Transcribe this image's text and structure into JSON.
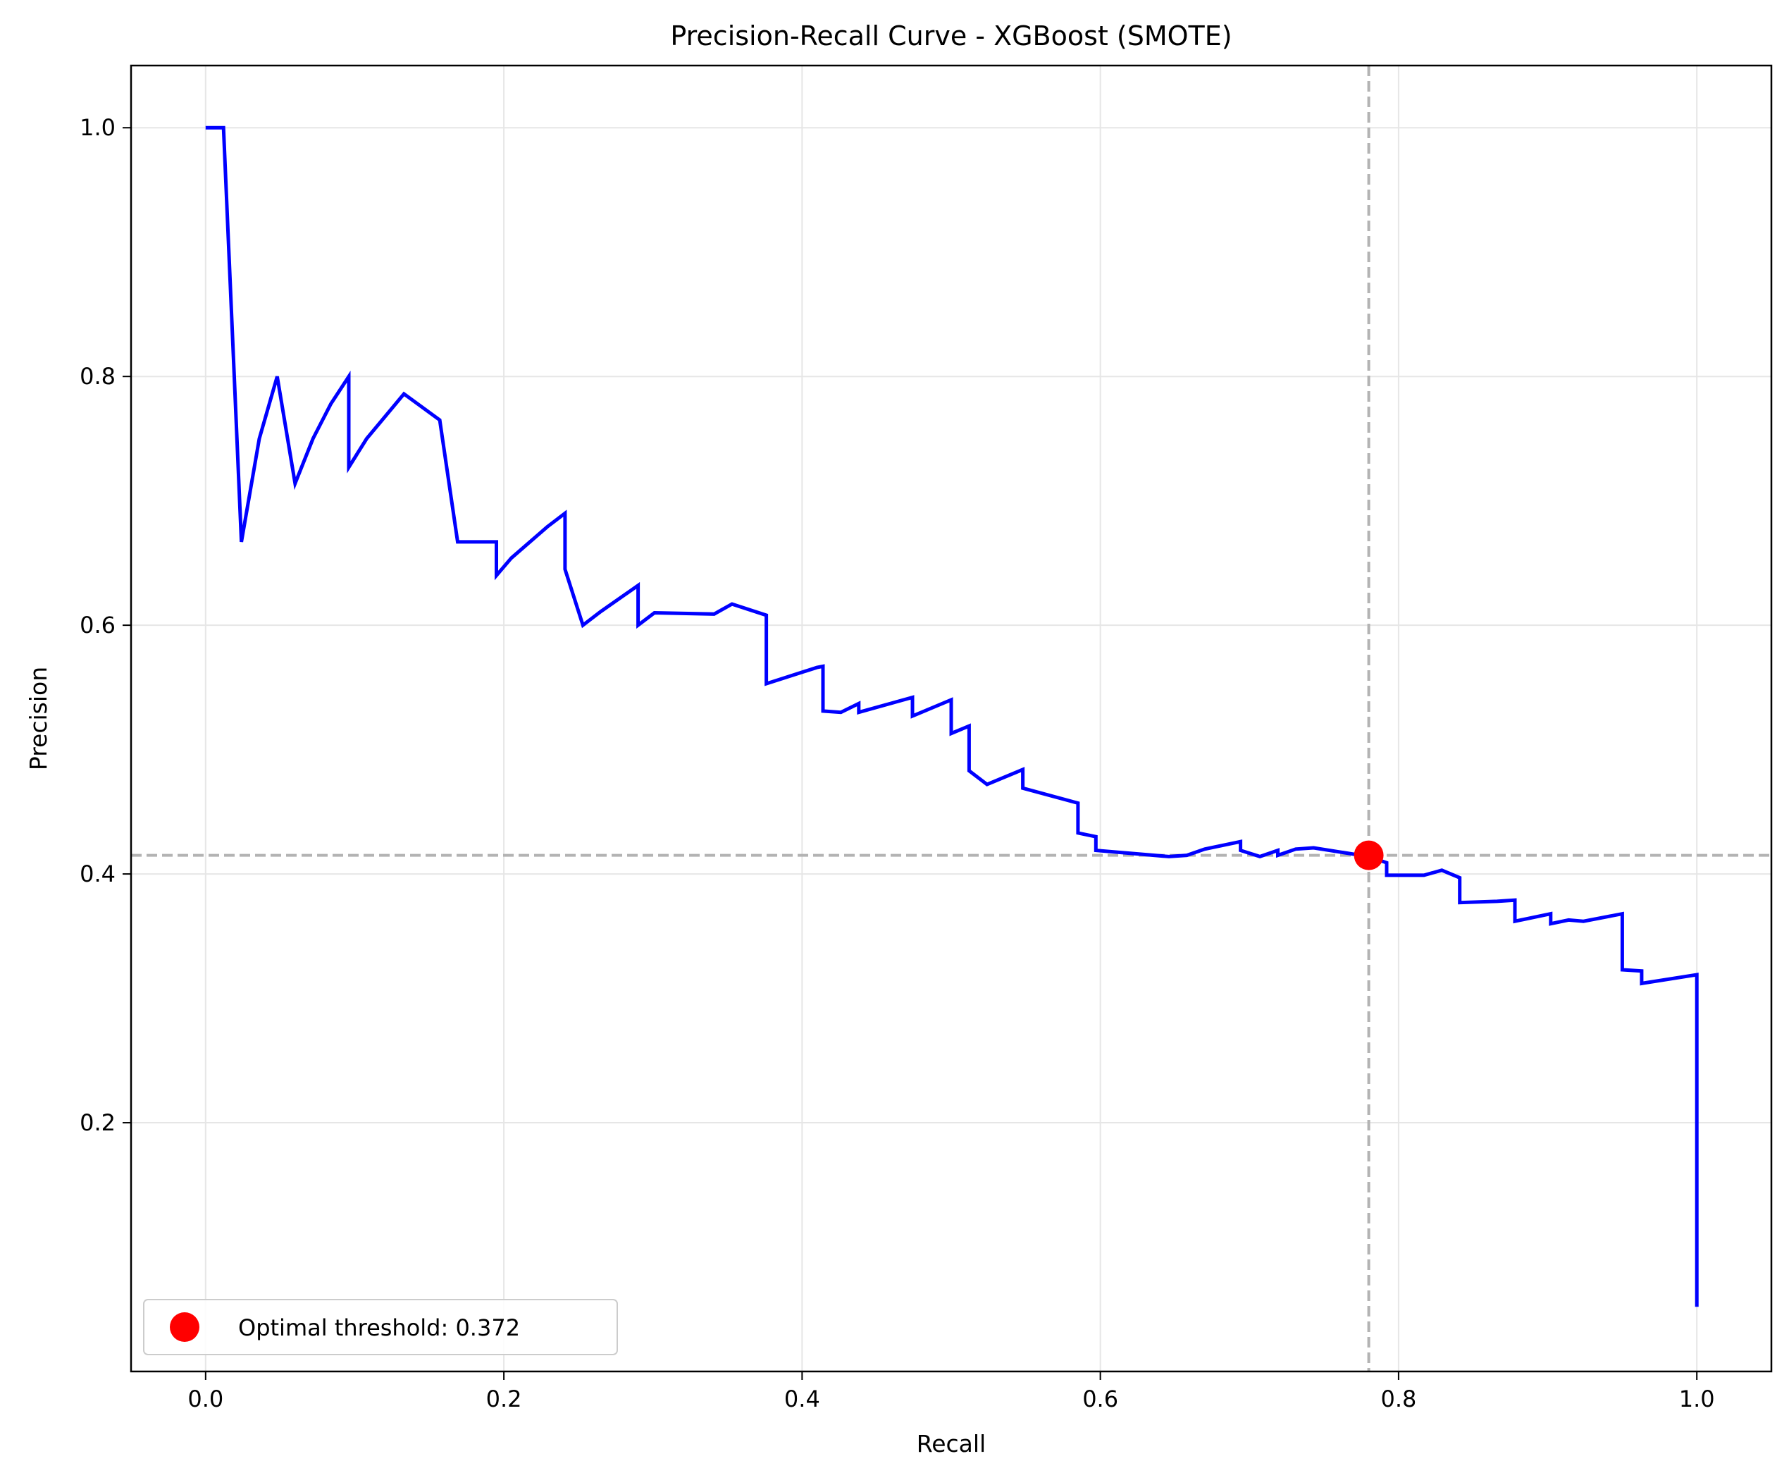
{
  "chart_data": {
    "type": "line",
    "title": "Precision-Recall Curve - XGBoost (SMOTE)",
    "xlabel": "Recall",
    "ylabel": "Precision",
    "xlim": [
      -0.05,
      1.05
    ],
    "ylim": [
      0.0,
      1.05
    ],
    "xticks": [
      0.0,
      0.2,
      0.4,
      0.6,
      0.8,
      1.0
    ],
    "xtick_labels": [
      "0.0",
      "0.2",
      "0.4",
      "0.6",
      "0.8",
      "1.0"
    ],
    "yticks": [
      0.2,
      0.4,
      0.6,
      0.8,
      1.0
    ],
    "ytick_labels": [
      "0.2",
      "0.4",
      "0.6",
      "0.8",
      "1.0"
    ],
    "grid": true,
    "legend_position": "lower-left",
    "series": [
      {
        "color": "#0000ff",
        "x": [
          0.0,
          0.012,
          0.024,
          0.036,
          0.048,
          0.06,
          0.072,
          0.084,
          0.096,
          0.096,
          0.108,
          0.133,
          0.157,
          0.169,
          0.195,
          0.195,
          0.205,
          0.229,
          0.241,
          0.241,
          0.253,
          0.265,
          0.29,
          0.29,
          0.301,
          0.341,
          0.353,
          0.376,
          0.376,
          0.41,
          0.414,
          0.414,
          0.426,
          0.438,
          0.438,
          0.474,
          0.474,
          0.5,
          0.5,
          0.512,
          0.512,
          0.524,
          0.548,
          0.548,
          0.585,
          0.585,
          0.597,
          0.597,
          0.646,
          0.658,
          0.67,
          0.694,
          0.694,
          0.707,
          0.719,
          0.719,
          0.731,
          0.743,
          0.78,
          0.792,
          0.792,
          0.817,
          0.829,
          0.841,
          0.841,
          0.866,
          0.878,
          0.878,
          0.902,
          0.902,
          0.914,
          0.924,
          0.95,
          0.95,
          0.963,
          0.963,
          1.0,
          1.0
        ],
        "y": [
          1.0,
          1.0,
          0.667,
          0.75,
          0.8,
          0.714,
          0.75,
          0.778,
          0.8,
          0.727,
          0.75,
          0.786,
          0.765,
          0.667,
          0.667,
          0.64,
          0.654,
          0.679,
          0.69,
          0.645,
          0.6,
          0.611,
          0.632,
          0.6,
          0.61,
          0.609,
          0.617,
          0.608,
          0.553,
          0.566,
          0.567,
          0.531,
          0.53,
          0.537,
          0.53,
          0.542,
          0.527,
          0.54,
          0.513,
          0.519,
          0.483,
          0.472,
          0.484,
          0.469,
          0.457,
          0.433,
          0.43,
          0.419,
          0.414,
          0.415,
          0.42,
          0.426,
          0.419,
          0.414,
          0.419,
          0.415,
          0.42,
          0.421,
          0.414,
          0.409,
          0.399,
          0.399,
          0.403,
          0.397,
          0.377,
          0.378,
          0.379,
          0.362,
          0.368,
          0.36,
          0.363,
          0.362,
          0.368,
          0.323,
          0.322,
          0.312,
          0.319,
          0.052
        ]
      }
    ],
    "optimal_point": {
      "x": 0.78,
      "y": 0.415,
      "color": "#ff0000"
    },
    "reference_lines": {
      "vertical_x": 0.78,
      "horizontal_y": 0.415,
      "color": "#b3b3b3"
    },
    "legend": {
      "label": "Optimal threshold: 0.372",
      "marker_color": "#ff0000"
    }
  }
}
